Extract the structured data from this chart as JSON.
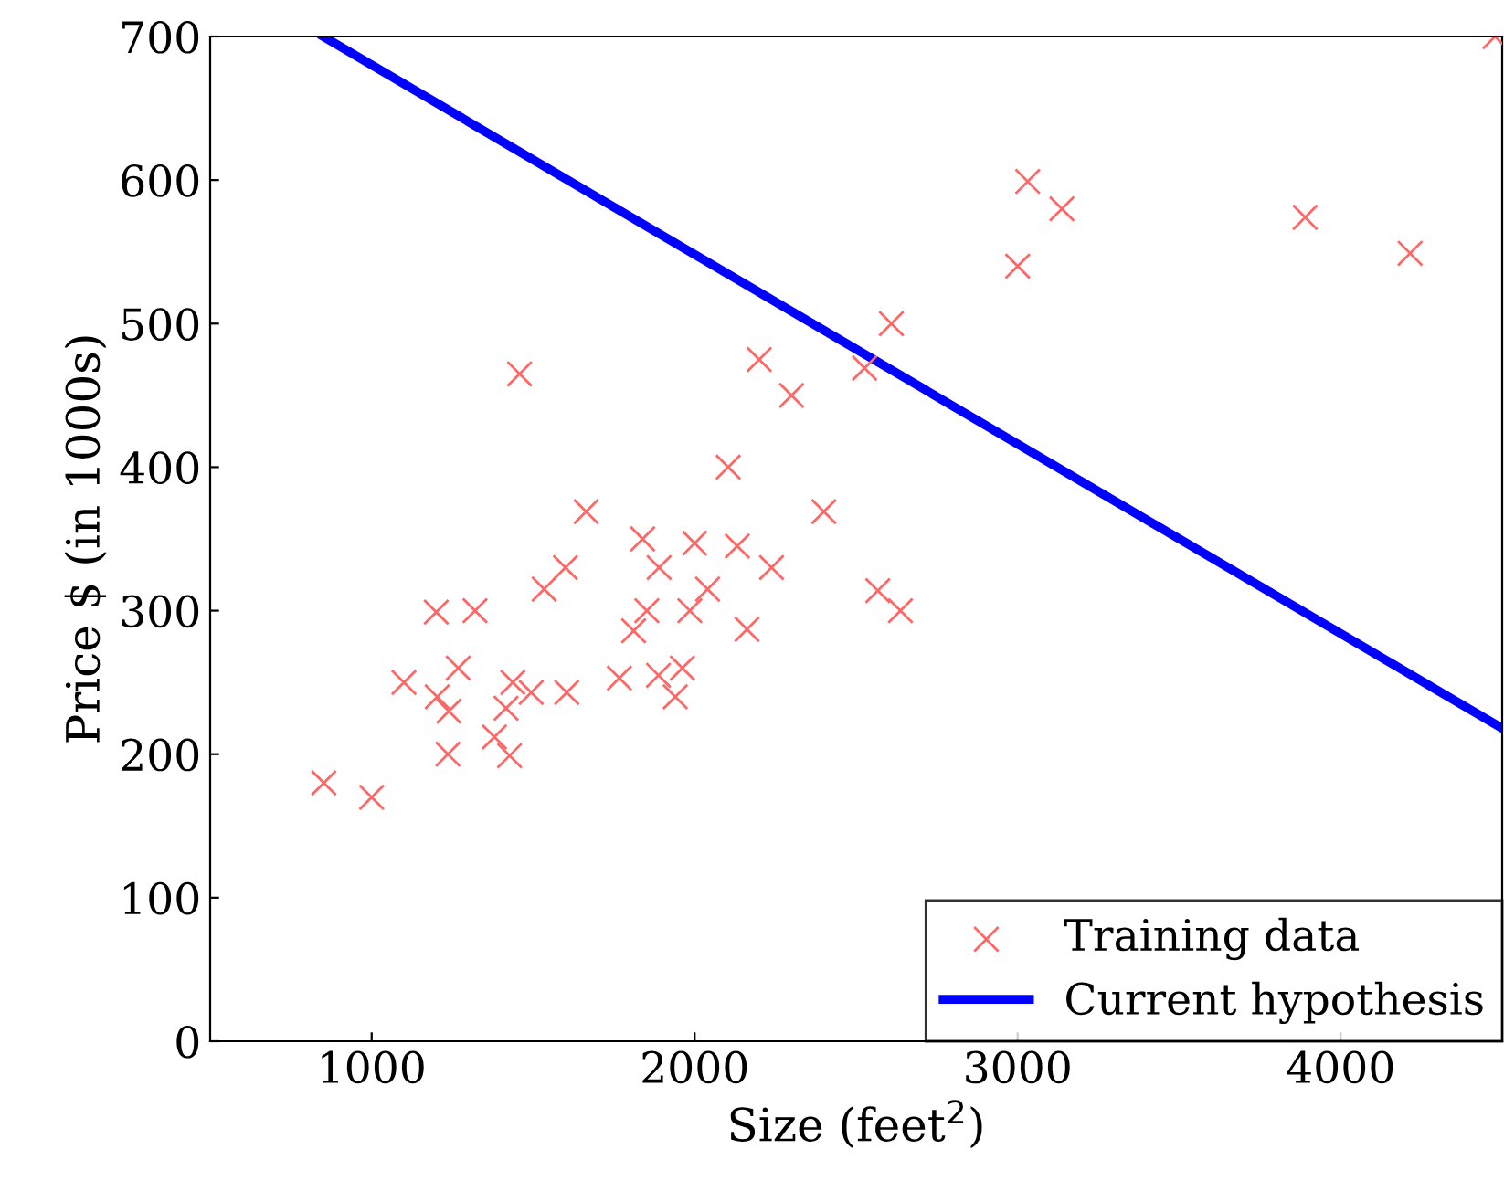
{
  "chart_data": {
    "type": "scatter",
    "xlabel": "Size (feet$^{2}$)",
    "ylabel": "Price $ (in 1000s)",
    "xlim": [
      500,
      4500
    ],
    "ylim": [
      0,
      700
    ],
    "xticks": [
      1000,
      2000,
      3000,
      4000
    ],
    "yticks": [
      0,
      100,
      200,
      300,
      400,
      500,
      600,
      700
    ],
    "grid": false,
    "legend": "bottom right",
    "series": [
      {
        "name": "Training data",
        "marker": "cross",
        "color": "#ff6666",
        "x": [
          2104,
          1600,
          2400,
          1416,
          3000,
          1985,
          1534,
          1427,
          1380,
          1494,
          1940,
          2000,
          1890,
          4478,
          1268,
          2300,
          1320,
          1236,
          2609,
          3031,
          1767,
          1888,
          1604,
          1962,
          3890,
          1100,
          1458,
          2526,
          2200,
          2637,
          1839,
          1000,
          2040,
          3137,
          1811,
          1437,
          1239,
          2132,
          4215,
          2162,
          1664,
          2238,
          2567,
          1200,
          852,
          1852,
          1203
        ],
        "values": [
          400,
          330,
          369,
          232,
          540,
          300,
          315,
          199,
          212,
          243,
          240,
          347,
          330,
          700,
          260,
          450,
          300,
          200,
          500,
          599,
          253,
          255,
          243,
          260,
          574,
          250,
          465,
          469,
          475,
          300,
          350,
          170,
          315,
          580,
          286,
          250,
          230,
          345,
          549,
          287,
          369,
          330,
          314,
          299,
          180,
          300,
          240
        ]
      },
      {
        "name": "Current hypothesis",
        "type": "line",
        "marker": "none",
        "line_style": "solid",
        "color": "#0000ff",
        "x": [
          850,
          4500
        ],
        "values": [
          700,
          218
        ]
      }
    ]
  }
}
